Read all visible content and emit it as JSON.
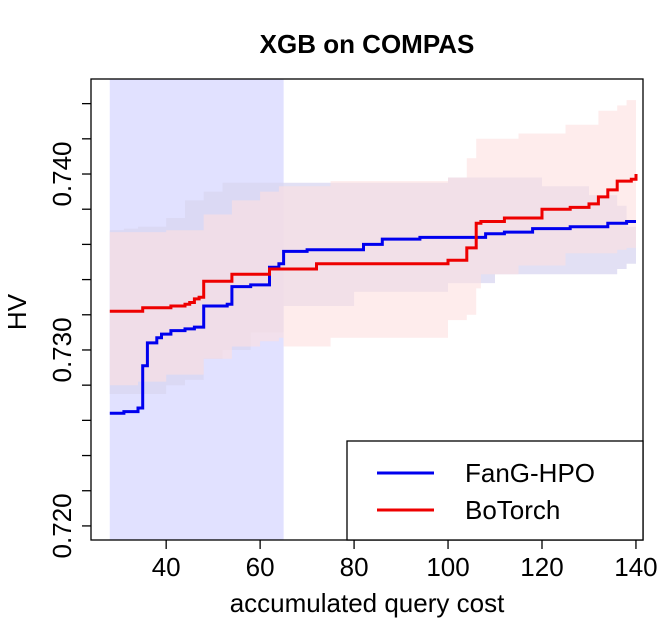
{
  "chart_data": {
    "type": "line",
    "title": "XGB on COMPAS",
    "xlabel": "accumulated query cost",
    "ylabel": "HV",
    "xlim": [
      24,
      141.5
    ],
    "ylim": [
      0.7192,
      0.7454
    ],
    "xticks": [
      40,
      60,
      80,
      100,
      120,
      140
    ],
    "xtick_labels": [
      "40",
      "60",
      "80",
      "100",
      "120",
      "140"
    ],
    "yticks": [
      0.72,
      0.73,
      0.74
    ],
    "ytick_labels": [
      "0.720",
      "0.730",
      "0.740"
    ],
    "legend_position": "bottom-right",
    "shaded_x_region": [
      28,
      65
    ],
    "shaded_region_color": "#e1e1ff",
    "series": [
      {
        "name": "FanG-HPO",
        "color": "#0000ee",
        "band_color": "#d8d6f0",
        "x": [
          28,
          31,
          34,
          35,
          36,
          38,
          39,
          41,
          44,
          46,
          48,
          53,
          54,
          58,
          62,
          64,
          65,
          70,
          82,
          86,
          94,
          104,
          108,
          112,
          118,
          126,
          134,
          138,
          140
        ],
        "y": [
          0.7264,
          0.7265,
          0.7267,
          0.7291,
          0.7304,
          0.7307,
          0.7309,
          0.7311,
          0.7312,
          0.7313,
          0.7325,
          0.7326,
          0.7336,
          0.7337,
          0.7347,
          0.7349,
          0.7356,
          0.7357,
          0.736,
          0.7363,
          0.7364,
          0.7364,
          0.7366,
          0.7367,
          0.7369,
          0.737,
          0.7372,
          0.7373,
          0.7373
        ],
        "band_x": [
          28,
          31,
          34,
          40,
          44,
          48,
          52,
          58,
          65,
          80,
          100,
          110,
          120,
          130,
          136,
          138,
          140
        ],
        "band_lower": [
          0.7275,
          0.7275,
          0.7275,
          0.728,
          0.7283,
          0.7295,
          0.73,
          0.731,
          0.7325,
          0.7333,
          0.7338,
          0.7343,
          0.7343,
          0.7343,
          0.7346,
          0.7349,
          0.735
        ],
        "band_upper": [
          0.7368,
          0.7369,
          0.737,
          0.7375,
          0.7385,
          0.739,
          0.7395,
          0.7395,
          0.7395,
          0.7395,
          0.7398,
          0.7398,
          0.7393,
          0.7388,
          0.7382,
          0.737,
          0.7362
        ]
      },
      {
        "name": "BoTorch",
        "color": "#ee0000",
        "band_color": "#fde0e0",
        "x": [
          28,
          35,
          39,
          41,
          44,
          45,
          46,
          47,
          48,
          54,
          62,
          65,
          72,
          84,
          98,
          100,
          104,
          106,
          107,
          112,
          120,
          126,
          130,
          132,
          134,
          136,
          138,
          139,
          140
        ],
        "y": [
          0.7322,
          0.7324,
          0.7324,
          0.7325,
          0.7326,
          0.7327,
          0.7329,
          0.733,
          0.7339,
          0.7343,
          0.7346,
          0.7346,
          0.7349,
          0.7349,
          0.7349,
          0.7351,
          0.7358,
          0.7372,
          0.7373,
          0.7375,
          0.738,
          0.7381,
          0.7383,
          0.7387,
          0.7391,
          0.7396,
          0.7396,
          0.7397,
          0.74
        ],
        "band_x": [
          28,
          34,
          40,
          48,
          54,
          60,
          64,
          65,
          75,
          100,
          104,
          106,
          107,
          115,
          125,
          132,
          136,
          138,
          140
        ],
        "band_lower": [
          0.728,
          0.7282,
          0.7286,
          0.7295,
          0.7302,
          0.7305,
          0.7307,
          0.7302,
          0.7307,
          0.7317,
          0.732,
          0.7335,
          0.7343,
          0.7348,
          0.7355,
          0.7355,
          0.7357,
          0.7358,
          0.736
        ],
        "band_upper": [
          0.7367,
          0.7367,
          0.7368,
          0.7377,
          0.7385,
          0.739,
          0.7393,
          0.7393,
          0.7396,
          0.7398,
          0.7409,
          0.742,
          0.742,
          0.7423,
          0.7428,
          0.7436,
          0.7439,
          0.7442,
          0.7444
        ]
      }
    ]
  }
}
